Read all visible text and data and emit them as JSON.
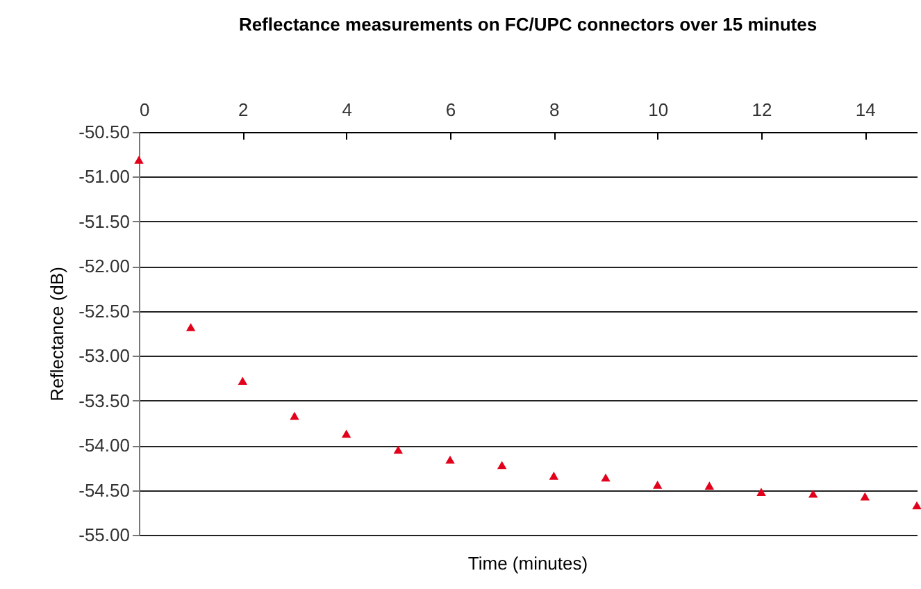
{
  "chart_data": {
    "type": "scatter",
    "title": "Reflectance measurements on FC/UPC connectors over 15 minutes",
    "xlabel": "Time (minutes)",
    "ylabel": "Reflectance (dB)",
    "x": [
      0,
      1,
      2,
      3,
      4,
      5,
      6,
      7,
      8,
      9,
      10,
      11,
      12,
      13,
      14,
      15
    ],
    "series": [
      {
        "color": "#e3001b",
        "values": [
          -50.81,
          -52.68,
          -53.28,
          -53.67,
          -53.87,
          -54.05,
          -54.16,
          -54.22,
          -54.34,
          -54.36,
          -54.44,
          -54.45,
          -54.52,
          -54.54,
          -54.57,
          -54.67
        ]
      }
    ],
    "xlim": [
      0,
      15
    ],
    "xticks": [
      0,
      2,
      4,
      6,
      8,
      10,
      12,
      14
    ],
    "ylim": [
      -55,
      -50.5
    ],
    "yticks": [
      {
        "value": -50.5,
        "label": "-50.50"
      },
      {
        "value": -51,
        "label": "-51.00"
      },
      {
        "value": -51.5,
        "label": "-51.50"
      },
      {
        "value": -52,
        "label": "-52.00"
      },
      {
        "value": -52.5,
        "label": "-52.50"
      },
      {
        "value": -53,
        "label": "-53.00"
      },
      {
        "value": -53.5,
        "label": "-53.50"
      },
      {
        "value": -54,
        "label": "-54.00"
      },
      {
        "value": -54.5,
        "label": "-54.50"
      },
      {
        "value": -55,
        "label": "-55.00"
      }
    ],
    "grid": "y",
    "marker": "triangle"
  }
}
